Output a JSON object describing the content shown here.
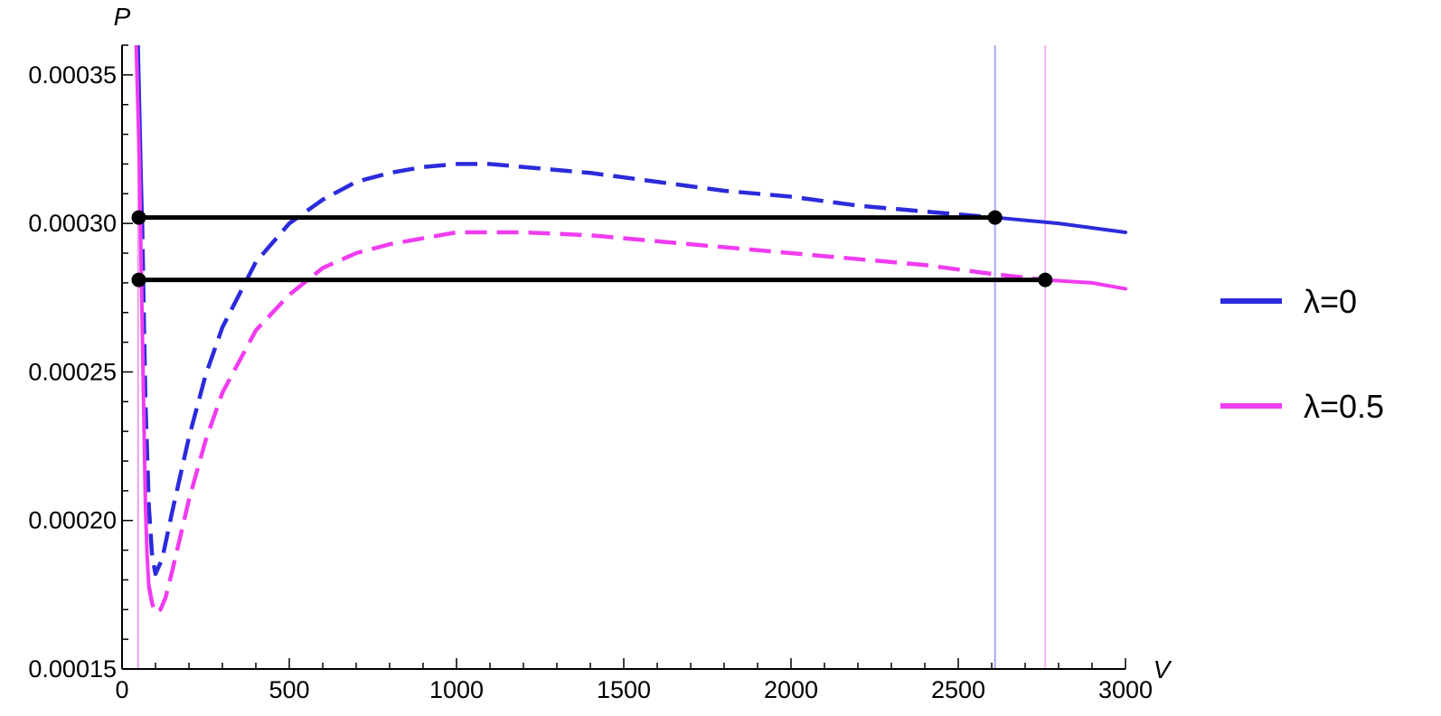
{
  "chart_data": {
    "type": "line",
    "title": "",
    "xlabel": "V",
    "ylabel": "P",
    "xlim": [
      0,
      3000
    ],
    "ylim": [
      0.00015,
      0.00036
    ],
    "x_ticks": [
      0,
      500,
      1000,
      1500,
      2000,
      2500,
      3000
    ],
    "x_tick_labels": [
      "0",
      "500",
      "1000",
      "1500",
      "2000",
      "2500",
      "3000"
    ],
    "y_ticks": [
      0.00015,
      0.0002,
      0.00025,
      0.0003,
      0.00035
    ],
    "y_tick_labels": [
      "0.00015",
      "0.00020",
      "0.00025",
      "0.00030",
      "0.00035"
    ],
    "grid": false,
    "legend_position": "right",
    "series": [
      {
        "name": "λ=0",
        "color": "#2b2bdc",
        "stable_left": [
          [
            48,
            0.00036
          ],
          [
            52,
            0.00034
          ],
          [
            56,
            0.00032
          ],
          [
            60,
            0.000302
          ]
        ],
        "unstable": [
          [
            60,
            0.000302
          ],
          [
            65,
            0.00027
          ],
          [
            70,
            0.00024
          ],
          [
            80,
            0.000205
          ],
          [
            90,
            0.000188
          ],
          [
            100,
            0.000182
          ],
          [
            120,
            0.000187
          ],
          [
            150,
            0.000203
          ],
          [
            200,
            0.000228
          ],
          [
            250,
            0.000249
          ],
          [
            300,
            0.000265
          ],
          [
            400,
            0.000287
          ],
          [
            500,
            0.0003
          ],
          [
            600,
            0.000308
          ],
          [
            700,
            0.000314
          ],
          [
            800,
            0.000317
          ],
          [
            900,
            0.000319
          ],
          [
            1000,
            0.00032
          ],
          [
            1100,
            0.00032
          ],
          [
            1200,
            0.000319
          ],
          [
            1400,
            0.000317
          ],
          [
            1600,
            0.000314
          ],
          [
            1800,
            0.000311
          ],
          [
            2000,
            0.000309
          ],
          [
            2200,
            0.000306
          ],
          [
            2400,
            0.000304
          ],
          [
            2610,
            0.000302
          ]
        ],
        "stable_right": [
          [
            2610,
            0.000302
          ],
          [
            2800,
            0.0003
          ],
          [
            3000,
            0.000297
          ]
        ]
      },
      {
        "name": "λ=0.5",
        "color": "#f03cf0",
        "stable_left": [
          [
            40,
            0.00037
          ],
          [
            46,
            0.000345
          ],
          [
            52,
            0.00032
          ],
          [
            58,
            0.00028
          ],
          [
            62,
            0.000255
          ],
          [
            66,
            0.00023
          ],
          [
            70,
            0.000205
          ],
          [
            75,
            0.000188
          ],
          [
            80,
            0.000178
          ]
        ],
        "unstable": [
          [
            80,
            0.000178
          ],
          [
            90,
            0.000172
          ],
          [
            100,
            0.000169
          ],
          [
            115,
            0.00017
          ],
          [
            130,
            0.000174
          ],
          [
            150,
            0.000183
          ],
          [
            200,
            0.000207
          ],
          [
            250,
            0.000227
          ],
          [
            300,
            0.000243
          ],
          [
            400,
            0.000264
          ],
          [
            500,
            0.000276
          ],
          [
            600,
            0.000285
          ],
          [
            700,
            0.00029
          ],
          [
            800,
            0.000293
          ],
          [
            900,
            0.000295
          ],
          [
            1000,
            0.000297
          ],
          [
            1100,
            0.000297
          ],
          [
            1200,
            0.000297
          ],
          [
            1400,
            0.000296
          ],
          [
            1600,
            0.000294
          ],
          [
            1800,
            0.000292
          ],
          [
            2000,
            0.00029
          ],
          [
            2200,
            0.000288
          ],
          [
            2400,
            0.000286
          ],
          [
            2600,
            0.000283
          ],
          [
            2760,
            0.000281
          ]
        ],
        "stable_right": [
          [
            2760,
            0.000281
          ],
          [
            2900,
            0.00028
          ],
          [
            3000,
            0.000278
          ]
        ]
      }
    ],
    "horizontal_lines": [
      {
        "x1": 50,
        "x2": 2610,
        "y": 0.000302,
        "color": "#000000"
      },
      {
        "x1": 50,
        "x2": 2760,
        "y": 0.000281,
        "color": "#000000"
      }
    ],
    "points": [
      {
        "x": 50,
        "y": 0.000302
      },
      {
        "x": 2610,
        "y": 0.000302
      },
      {
        "x": 50,
        "y": 0.000281
      },
      {
        "x": 2760,
        "y": 0.000281
      }
    ],
    "vertical_lines": [
      {
        "x": 48,
        "color": "#e9a3e9"
      },
      {
        "x": 2610,
        "color": "#a8a8f4"
      },
      {
        "x": 2760,
        "color": "#f4b4f4"
      }
    ]
  }
}
